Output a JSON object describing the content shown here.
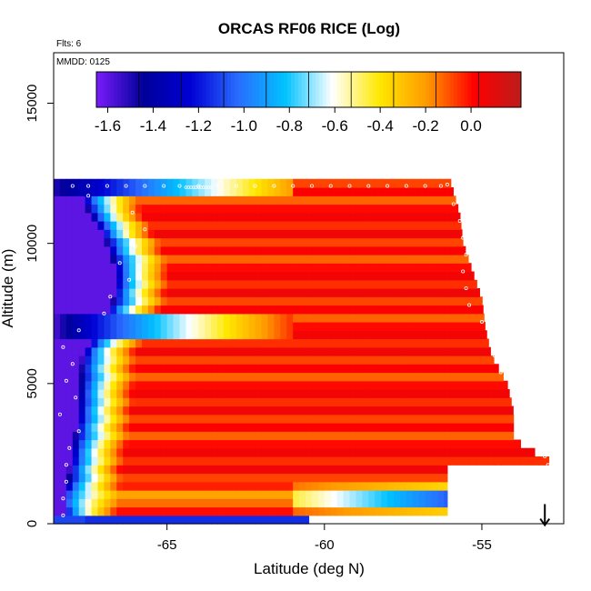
{
  "chart_data": {
    "type": "heatmap",
    "title": "ORCAS RF06 RICE (Log)",
    "note_flights": "Flts: 6",
    "note_date": "MMDD: 0125",
    "xlabel": "Latitude (deg N)",
    "ylabel": "Altitude (m)",
    "xlim": [
      -68.6,
      -52.4
    ],
    "ylim": [
      0,
      16800
    ],
    "x_ticks": [
      -65,
      -60,
      -55
    ],
    "x_tick_labels": [
      "-65",
      "-60",
      "-55"
    ],
    "y_ticks": [
      0,
      5000,
      10000,
      15000
    ],
    "y_tick_labels": [
      "0",
      "5000",
      "10000",
      "15000"
    ],
    "colorbar": {
      "range": [
        -1.65,
        0.22
      ],
      "ticks": [
        -1.6,
        -1.4,
        -1.2,
        -1.0,
        -0.8,
        -0.6,
        -0.4,
        -0.2,
        0.0
      ],
      "tick_labels": [
        "-1.6",
        "-1.4",
        "-1.2",
        "-1.0",
        "-0.8",
        "-0.6",
        "-0.4",
        "-0.2",
        "0.0"
      ],
      "colors": [
        "#7a1cfa",
        "#00009a",
        "#0000d4",
        "#2a6cff",
        "#00c2ff",
        "#ffffff",
        "#ffe800",
        "#ff9a00",
        "#ff0000",
        "#bc1c1c"
      ]
    },
    "field": {
      "lat_min": -68.6,
      "lat_step": 0.2,
      "alt_step": 300,
      "n_alt": 41,
      "top_edge_lat": [
        [
          0,
          -56.1
        ],
        [
          2000,
          -56.1
        ],
        [
          2200,
          -52.8
        ],
        [
          3000,
          -54.0
        ],
        [
          4000,
          -54.0
        ],
        [
          5000,
          -54.2
        ],
        [
          6000,
          -54.7
        ],
        [
          7000,
          -54.9
        ],
        [
          8000,
          -55.0
        ],
        [
          9000,
          -55.3
        ],
        [
          10000,
          -55.6
        ],
        [
          11000,
          -55.7
        ],
        [
          12200,
          -56.0
        ]
      ],
      "bottom_strip": {
        "alt_max": 300,
        "lat_max": -60.5
      },
      "blue_core": {
        "left": [
          [
            0,
            -68.6
          ],
          [
            2000,
            -68.6
          ],
          [
            4000,
            -68.5
          ],
          [
            6000,
            -68.4
          ],
          [
            7200,
            -68.0
          ],
          [
            8000,
            -67.6
          ],
          [
            9000,
            -67.5
          ],
          [
            10000,
            -67.5
          ],
          [
            11000,
            -67.8
          ],
          [
            12000,
            -68.2
          ]
        ],
        "width": [
          [
            0,
            0.3
          ],
          [
            2000,
            0.5
          ],
          [
            4000,
            0.7
          ],
          [
            6000,
            0.7
          ],
          [
            7200,
            0.9
          ],
          [
            8000,
            0.9
          ],
          [
            9000,
            0.9
          ],
          [
            10000,
            0.6
          ],
          [
            11000,
            0.4
          ],
          [
            12000,
            0.3
          ]
        ]
      },
      "transition_width_deg": 1.7,
      "low_level_band": {
        "alt_center": 900,
        "alt_half_width": 600,
        "gradient_start_lat": -61.0
      },
      "layer_7000": {
        "alt_min": 6850,
        "alt_max": 7250,
        "lat_extent": -61.0
      },
      "layer_12000": {
        "alt_min": 11850,
        "alt_max": 12150,
        "lat_extent": -61.0
      },
      "body_values": [
        -0.05,
        0.05,
        0.0,
        -0.12,
        0.02,
        -0.08,
        0.06
      ]
    },
    "markers": {
      "right_edge": [
        [
          300,
          -53.0
        ],
        [
          600,
          -52.9
        ],
        [
          1200,
          -52.8
        ],
        [
          1800,
          -52.8
        ],
        [
          2100,
          -52.9
        ],
        [
          2400,
          -53.0
        ],
        [
          3000,
          -53.6
        ],
        [
          3600,
          -53.5
        ],
        [
          4200,
          -53.6
        ],
        [
          4800,
          -53.9
        ],
        [
          5400,
          -54.4
        ],
        [
          6000,
          -54.6
        ],
        [
          6600,
          -54.7
        ],
        [
          7200,
          -55.0
        ],
        [
          7800,
          -55.4
        ],
        [
          8400,
          -55.5
        ],
        [
          9000,
          -55.6
        ],
        [
          9600,
          -55.5
        ],
        [
          10200,
          -55.6
        ],
        [
          10800,
          -55.7
        ],
        [
          11400,
          -55.9
        ],
        [
          12100,
          -56.1
        ]
      ],
      "left_edge": [
        [
          300,
          -68.3
        ],
        [
          900,
          -68.3
        ],
        [
          1500,
          -68.2
        ],
        [
          2100,
          -68.2
        ],
        [
          2700,
          -68.1
        ],
        [
          3300,
          -67.8
        ],
        [
          3900,
          -68.4
        ],
        [
          4500,
          -67.9
        ],
        [
          5100,
          -68.2
        ],
        [
          5700,
          -68.0
        ],
        [
          6300,
          -68.3
        ],
        [
          6900,
          -67.8
        ],
        [
          7500,
          -67.0
        ],
        [
          8100,
          -66.8
        ],
        [
          8700,
          -66.2
        ],
        [
          9300,
          -66.5
        ],
        [
          9900,
          -66.0
        ],
        [
          10500,
          -65.7
        ],
        [
          11100,
          -66.1
        ],
        [
          11700,
          -67.5
        ]
      ],
      "top_row_lat": [
        -68.0,
        -67.5,
        -66.9,
        -66.3,
        -65.7,
        -65.1,
        -64.6,
        -64.0,
        -63.4,
        -62.8,
        -62.2,
        -61.6,
        -61.0,
        -60.4,
        -59.8,
        -59.2,
        -58.6,
        -58.0,
        -57.4,
        -56.8,
        -56.3
      ],
      "top_row_alt": 12050,
      "cluster_lat": [
        -64.4,
        -63.6
      ],
      "cluster_alt": 12000
    },
    "arrow": {
      "lat": -53.0,
      "alt_top": 700,
      "alt_bottom": -50,
      "direction": "down"
    }
  }
}
